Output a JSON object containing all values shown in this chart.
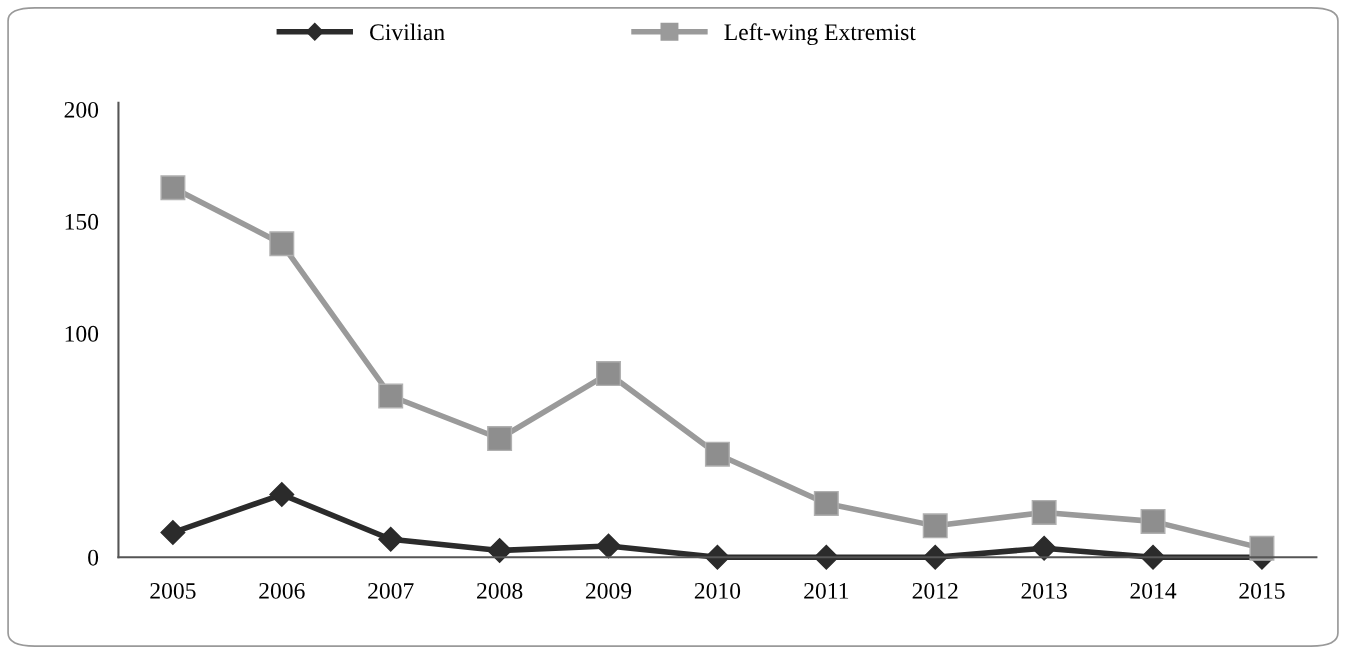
{
  "chart_data": {
    "type": "line",
    "categories": [
      "2005",
      "2006",
      "2007",
      "2008",
      "2009",
      "2010",
      "2011",
      "2012",
      "2013",
      "2014",
      "2015"
    ],
    "series": [
      {
        "name": "Civilian",
        "color": "#2b2b2b",
        "marker": "diamond",
        "values": [
          11,
          28,
          8,
          3,
          5,
          0,
          0,
          0,
          4,
          0,
          0
        ]
      },
      {
        "name": "Left-wing Extremist",
        "color": "#9a9a9a",
        "marker": "square",
        "values": [
          165,
          140,
          72,
          53,
          82,
          46,
          24,
          14,
          20,
          16,
          4
        ]
      }
    ],
    "ylim": [
      0,
      203
    ],
    "yticks": [
      200,
      150,
      100,
      0
    ],
    "grid": false,
    "legend": "top",
    "line_style": "solid"
  }
}
